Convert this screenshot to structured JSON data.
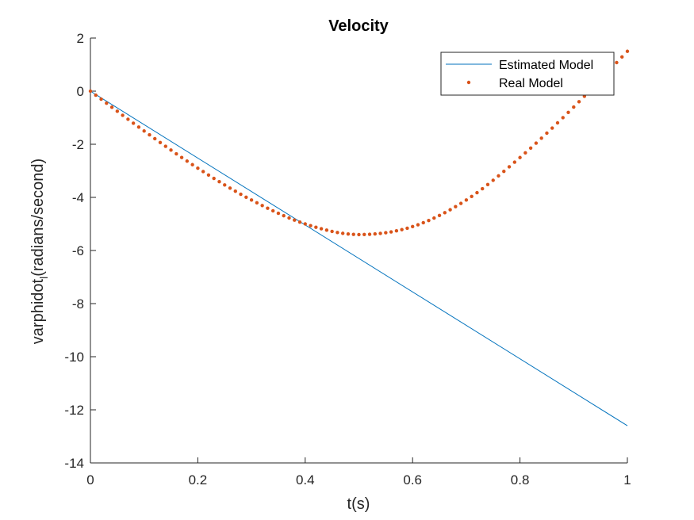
{
  "chart_data": {
    "type": "line",
    "title": "Velocity",
    "xlabel": "t(s)",
    "ylabel": {
      "main": "varphidot",
      "sub": "l",
      "rest": "(radians/second)"
    },
    "xlim": [
      0,
      1
    ],
    "ylim": [
      -14,
      2
    ],
    "xticks": [
      0,
      0.2,
      0.4,
      0.6,
      0.8,
      1
    ],
    "xtick_labels": [
      "0",
      "0.2",
      "0.4",
      "0.6",
      "0.8",
      "1"
    ],
    "yticks": [
      2,
      0,
      -2,
      -4,
      -6,
      -8,
      -10,
      -12,
      -14
    ],
    "ytick_labels": [
      "2",
      "0",
      "-2",
      "-4",
      "-6",
      "-8",
      "-10",
      "-12",
      "-14"
    ],
    "grid": false,
    "legend_position": "top-right",
    "series": [
      {
        "name": "Estimated Model",
        "style": "line",
        "color": "#0072BD",
        "x": [
          0,
          1
        ],
        "y": [
          0,
          -12.6
        ]
      },
      {
        "name": "Real Model",
        "style": "dotted",
        "color": "#D95319",
        "x": [
          0,
          0.1,
          0.2,
          0.3,
          0.4,
          0.5,
          0.6,
          0.7,
          0.8,
          0.9,
          1.0
        ],
        "y": [
          0,
          -1.5,
          -2.9,
          -4.1,
          -5.0,
          -5.4,
          -5.1,
          -4.1,
          -2.5,
          -0.6,
          1.5
        ]
      }
    ]
  }
}
